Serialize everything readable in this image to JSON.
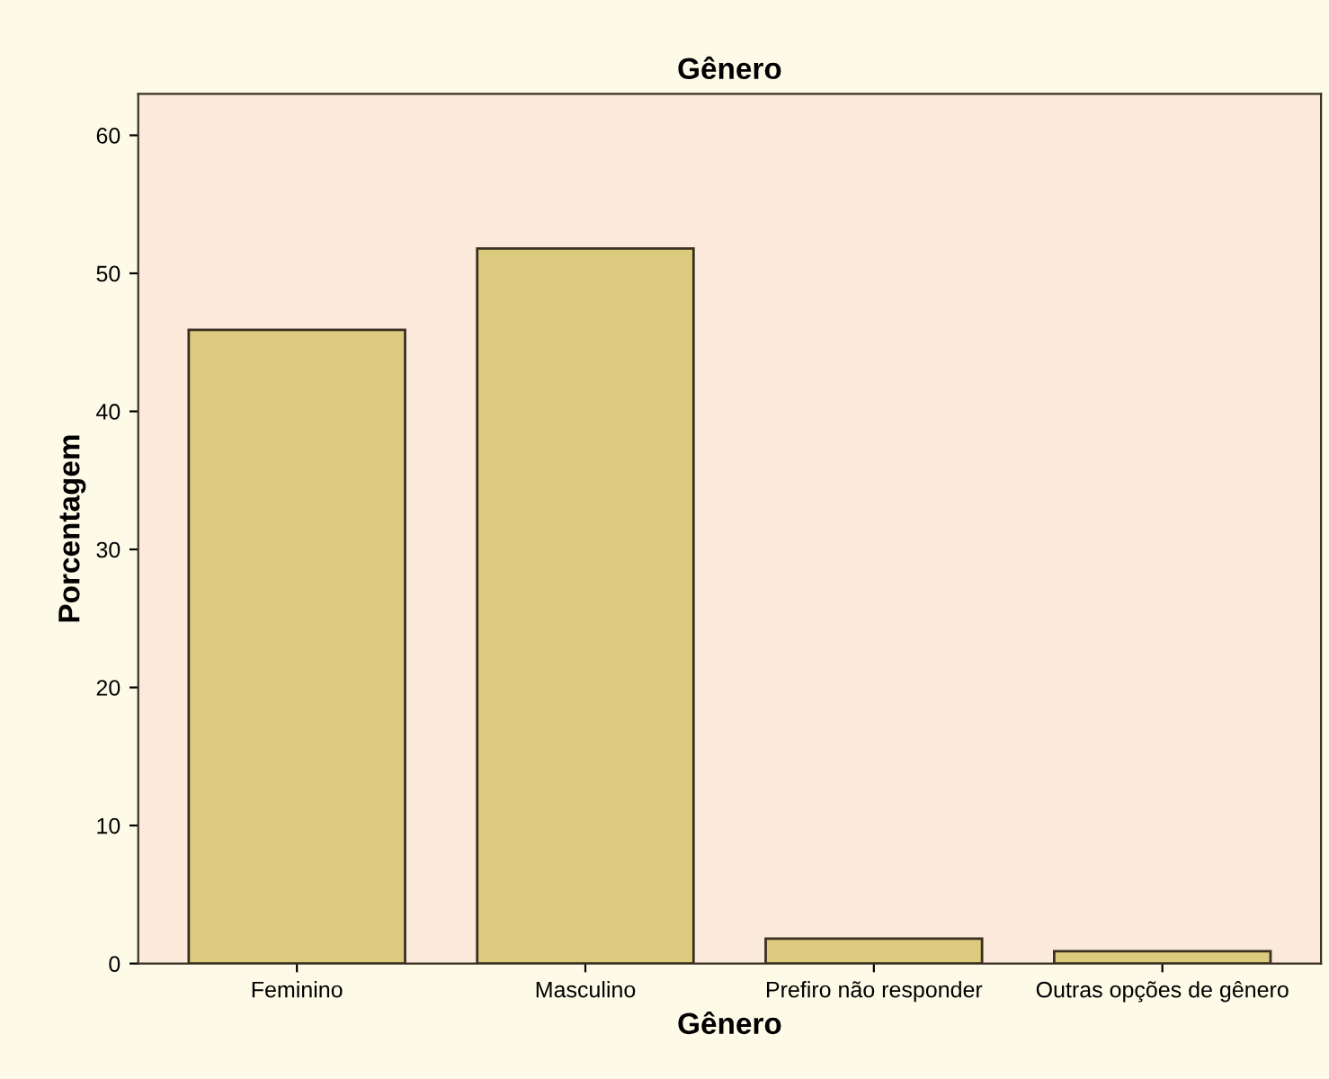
{
  "chart_data": {
    "type": "bar",
    "title": "Gênero",
    "xlabel": "Gênero",
    "ylabel": "Porcentagem",
    "categories": [
      "Feminino",
      "Masculino",
      "Prefiro não responder",
      "Outras opções de gênero"
    ],
    "values": [
      45.9,
      51.8,
      1.8,
      0.9
    ],
    "color": "#dccb7f",
    "ylim": [
      0,
      63
    ],
    "yticks": [
      0,
      10,
      20,
      30,
      40,
      50,
      60
    ],
    "grid": false
  }
}
